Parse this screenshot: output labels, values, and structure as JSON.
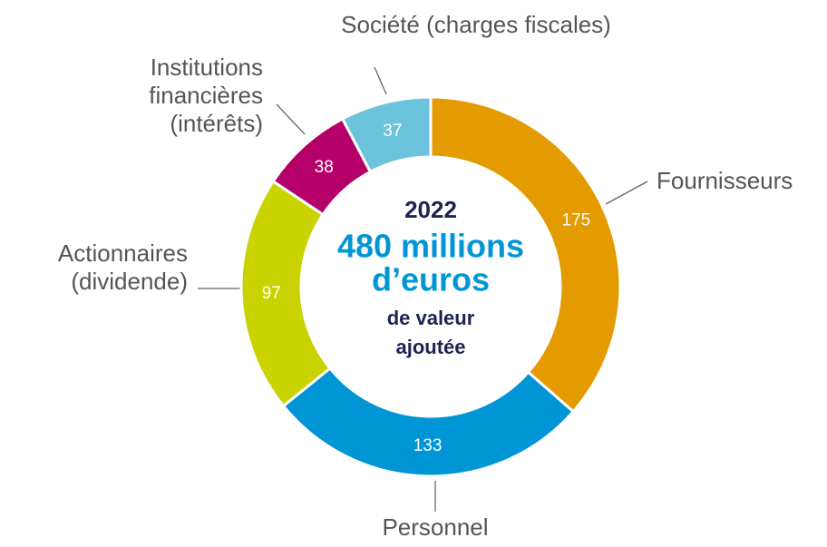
{
  "chart_data": {
    "type": "donut",
    "categories": [
      "Fournisseurs",
      "Personnel",
      "Actionnaires\n(dividende)",
      "Institutions\nfinancières\n(intérêts)",
      "Société (charges fiscales)"
    ],
    "values": [
      175,
      133,
      97,
      38,
      37
    ],
    "colors": [
      "#e39b00",
      "#0096d6",
      "#c8d300",
      "#b5006a",
      "#6cc4dc"
    ],
    "center_text": [
      "2022",
      "480 millions",
      "d’euros",
      "de valeur",
      "ajoutée"
    ]
  }
}
